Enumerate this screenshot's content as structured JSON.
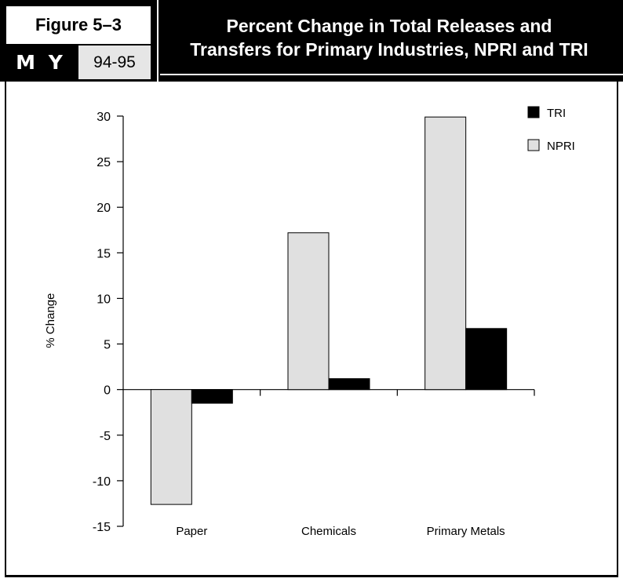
{
  "header": {
    "figure_label": "Figure 5–3",
    "badge": "M Y",
    "year_range": "94-95",
    "title_line1": "Percent Change in Total Releases and",
    "title_line2": "Transfers for Primary Industries, NPRI and TRI"
  },
  "chart_data": {
    "type": "bar",
    "title": "Percent Change in Total Releases and Transfers for Primary Industries, NPRI and TRI",
    "xlabel": "",
    "ylabel": "% Change",
    "categories": [
      "Paper",
      "Chemicals",
      "Primary Metals"
    ],
    "series": [
      {
        "name": "NPRI",
        "color": "#e0e0e0",
        "values": [
          -12.6,
          17.2,
          29.9
        ]
      },
      {
        "name": "TRI",
        "color": "#000000",
        "values": [
          -1.5,
          1.2,
          6.7
        ]
      }
    ],
    "ylim": [
      -15,
      30
    ],
    "yticks": [
      30,
      25,
      20,
      15,
      10,
      5,
      0,
      -5,
      -10,
      -15
    ],
    "grid": false,
    "legend_position": "top-right",
    "legend_order": [
      "TRI",
      "NPRI"
    ]
  }
}
